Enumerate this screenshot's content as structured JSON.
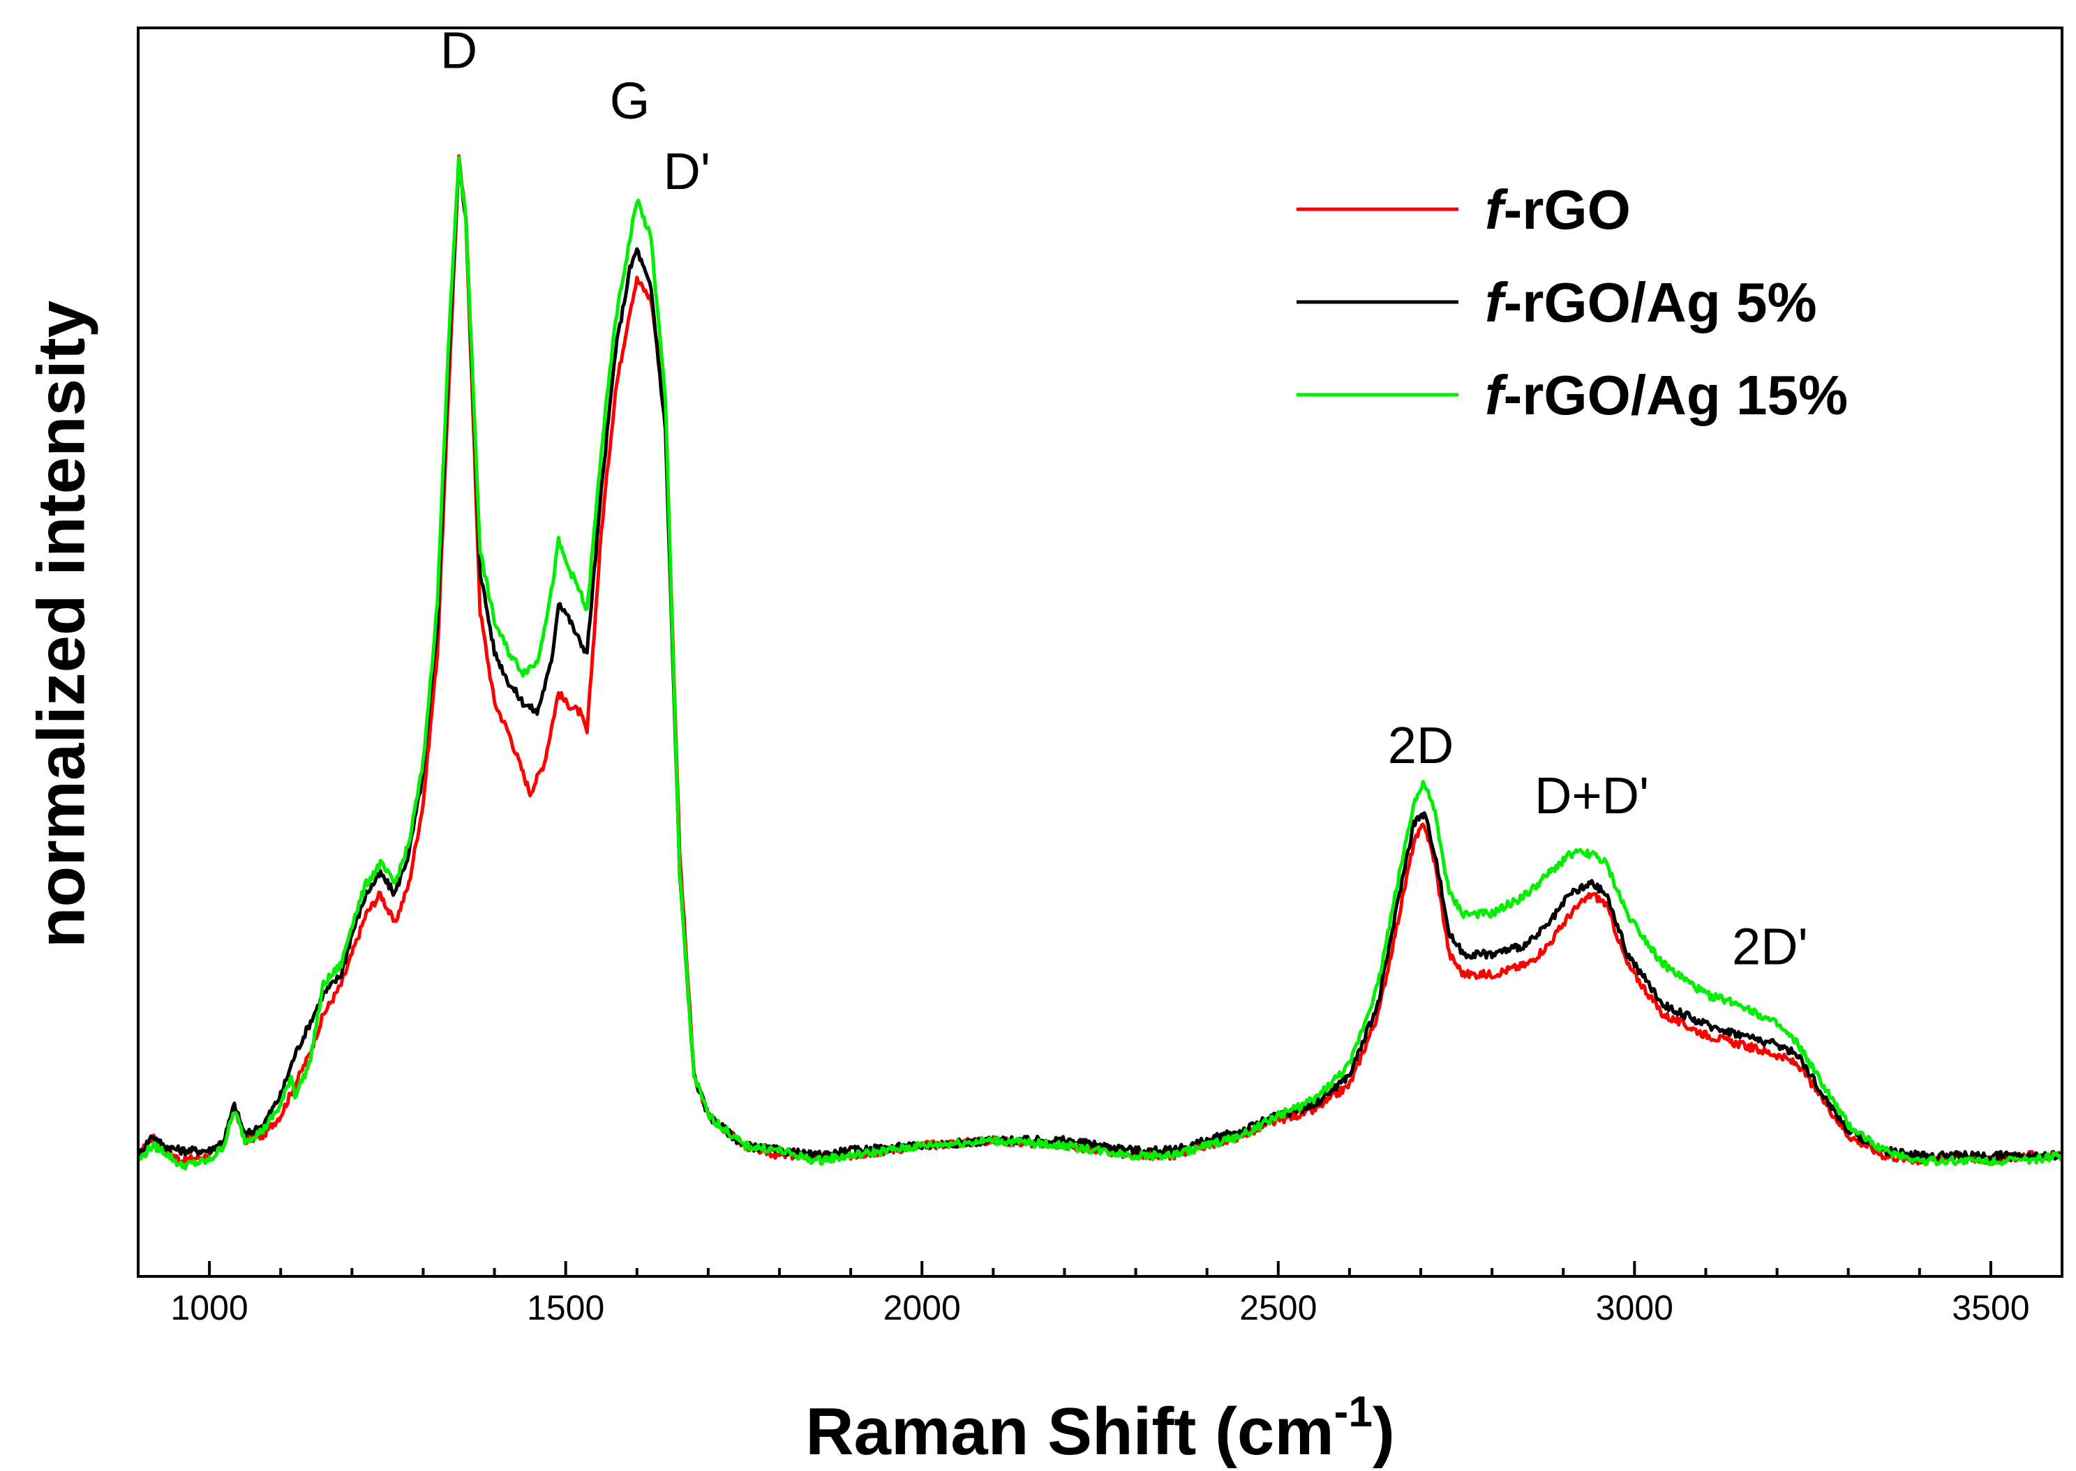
{
  "chart_data": {
    "type": "line",
    "title": "",
    "xlabel": "Raman Shift (cm",
    "xlabel_sup": "-1",
    "xlabel_close": ")",
    "ylabel": "normalized intensity",
    "xlim": [
      900,
      3600
    ],
    "ylim": [
      -0.12,
      1.12
    ],
    "x_ticks": [
      1000,
      1500,
      2000,
      2500,
      3000,
      3500
    ],
    "x_tick_labels": [
      "1000",
      "1500",
      "2000",
      "2500",
      "3000",
      "3500"
    ],
    "y_ticks_shown": false,
    "grid": false,
    "legend_position": "top-right",
    "annotations": [
      {
        "text": "D",
        "x": 1350,
        "y": 1.08
      },
      {
        "text": "G",
        "x": 1590,
        "y": 1.03
      },
      {
        "text": "D'",
        "x": 1670,
        "y": 0.96
      },
      {
        "text": "2D",
        "x": 2700,
        "y": 0.39
      },
      {
        "text": "D+D'",
        "x": 2940,
        "y": 0.34
      },
      {
        "text": "2D'",
        "x": 3190,
        "y": 0.19
      }
    ],
    "series": [
      {
        "name": "f-rGO",
        "name_italic": "f",
        "name_rest": "-rGO",
        "color": "#ff0000",
        "x": [
          900,
          920,
          935,
          960,
          1000,
          1020,
          1035,
          1050,
          1075,
          1100,
          1120,
          1140,
          1160,
          1185,
          1200,
          1220,
          1240,
          1260,
          1280,
          1300,
          1320,
          1335,
          1350,
          1360,
          1380,
          1400,
          1420,
          1440,
          1450,
          1470,
          1490,
          1500,
          1520,
          1530,
          1550,
          1570,
          1590,
          1600,
          1620,
          1640,
          1660,
          1680,
          1700,
          1750,
          1800,
          1850,
          1900,
          2000,
          2100,
          2200,
          2300,
          2350,
          2400,
          2450,
          2500,
          2550,
          2600,
          2640,
          2670,
          2690,
          2705,
          2720,
          2740,
          2760,
          2800,
          2850,
          2880,
          2910,
          2940,
          2960,
          2990,
          3040,
          3100,
          3150,
          3200,
          3230,
          3260,
          3300,
          3350,
          3400,
          3450,
          3500,
          3550,
          3600
        ],
        "y": [
          0.0,
          0.018,
          0.008,
          -0.005,
          0.0,
          0.01,
          0.05,
          0.015,
          0.02,
          0.04,
          0.07,
          0.1,
          0.14,
          0.17,
          0.2,
          0.24,
          0.26,
          0.23,
          0.27,
          0.35,
          0.5,
          0.75,
          0.99,
          0.93,
          0.54,
          0.45,
          0.42,
          0.38,
          0.36,
          0.39,
          0.46,
          0.45,
          0.44,
          0.42,
          0.62,
          0.76,
          0.84,
          0.87,
          0.85,
          0.74,
          0.3,
          0.08,
          0.04,
          0.01,
          0.0,
          0.0,
          0.0,
          0.01,
          0.015,
          0.01,
          0.0,
          0.0,
          0.01,
          0.02,
          0.035,
          0.045,
          0.07,
          0.14,
          0.24,
          0.31,
          0.33,
          0.29,
          0.2,
          0.18,
          0.18,
          0.19,
          0.21,
          0.24,
          0.26,
          0.25,
          0.19,
          0.14,
          0.12,
          0.11,
          0.1,
          0.09,
          0.06,
          0.02,
          0.0,
          -0.005,
          0.0,
          -0.005,
          0.0,
          0.0
        ]
      },
      {
        "name": "f-rGO/Ag 5%",
        "name_italic": "f",
        "name_rest": "-rGO/Ag 5%",
        "color": "#000000",
        "x": [
          900,
          920,
          935,
          960,
          1000,
          1020,
          1035,
          1050,
          1075,
          1100,
          1120,
          1140,
          1160,
          1185,
          1200,
          1220,
          1240,
          1260,
          1280,
          1300,
          1320,
          1335,
          1350,
          1360,
          1380,
          1400,
          1420,
          1440,
          1460,
          1480,
          1490,
          1500,
          1520,
          1530,
          1550,
          1570,
          1590,
          1600,
          1620,
          1640,
          1660,
          1680,
          1700,
          1750,
          1800,
          1850,
          1900,
          2000,
          2100,
          2200,
          2300,
          2350,
          2400,
          2450,
          2500,
          2550,
          2600,
          2640,
          2670,
          2690,
          2705,
          2720,
          2740,
          2760,
          2800,
          2850,
          2880,
          2910,
          2940,
          2960,
          2990,
          3040,
          3100,
          3150,
          3200,
          3230,
          3260,
          3300,
          3350,
          3400,
          3450,
          3500,
          3550,
          3600
        ],
        "y": [
          0.0,
          0.02,
          0.01,
          0.005,
          0.005,
          0.015,
          0.05,
          0.02,
          0.03,
          0.06,
          0.1,
          0.13,
          0.16,
          0.18,
          0.22,
          0.26,
          0.28,
          0.26,
          0.3,
          0.38,
          0.53,
          0.78,
          0.99,
          0.93,
          0.58,
          0.5,
          0.47,
          0.45,
          0.44,
          0.49,
          0.55,
          0.54,
          0.51,
          0.5,
          0.66,
          0.8,
          0.88,
          0.9,
          0.86,
          0.72,
          0.28,
          0.08,
          0.04,
          0.01,
          0.005,
          0.0,
          0.005,
          0.01,
          0.015,
          0.015,
          0.005,
          0.005,
          0.015,
          0.025,
          0.04,
          0.05,
          0.08,
          0.15,
          0.26,
          0.33,
          0.34,
          0.3,
          0.22,
          0.2,
          0.2,
          0.21,
          0.23,
          0.26,
          0.27,
          0.26,
          0.2,
          0.15,
          0.13,
          0.12,
          0.11,
          0.1,
          0.065,
          0.025,
          0.005,
          0.0,
          0.0,
          0.0,
          0.0,
          0.0
        ]
      },
      {
        "name": "f-rGO/Ag 15%",
        "name_italic": "f",
        "name_rest": "-rGO/Ag 15%",
        "color": "#00ee00",
        "x": [
          900,
          920,
          935,
          960,
          1000,
          1020,
          1035,
          1050,
          1075,
          1100,
          1115,
          1120,
          1140,
          1160,
          1185,
          1200,
          1220,
          1240,
          1260,
          1280,
          1300,
          1320,
          1335,
          1350,
          1360,
          1380,
          1400,
          1420,
          1440,
          1460,
          1480,
          1490,
          1500,
          1520,
          1530,
          1550,
          1570,
          1590,
          1600,
          1620,
          1640,
          1660,
          1680,
          1700,
          1750,
          1800,
          1850,
          1900,
          2000,
          2100,
          2200,
          2300,
          2350,
          2400,
          2450,
          2500,
          2550,
          2600,
          2640,
          2670,
          2690,
          2705,
          2720,
          2740,
          2760,
          2800,
          2850,
          2880,
          2910,
          2940,
          2960,
          2990,
          3040,
          3100,
          3150,
          3200,
          3230,
          3260,
          3300,
          3350,
          3400,
          3450,
          3500,
          3550,
          3600
        ],
        "y": [
          -0.005,
          0.01,
          0.005,
          -0.01,
          -0.005,
          0.01,
          0.045,
          0.015,
          0.025,
          0.05,
          0.08,
          0.06,
          0.09,
          0.17,
          0.19,
          0.23,
          0.27,
          0.29,
          0.27,
          0.31,
          0.39,
          0.55,
          0.8,
          0.99,
          0.93,
          0.6,
          0.53,
          0.5,
          0.48,
          0.49,
          0.56,
          0.61,
          0.59,
          0.56,
          0.54,
          0.7,
          0.83,
          0.91,
          0.95,
          0.91,
          0.75,
          0.28,
          0.08,
          0.04,
          0.01,
          0.005,
          -0.005,
          0.0,
          0.01,
          0.015,
          0.01,
          0.0,
          0.0,
          0.01,
          0.02,
          0.04,
          0.055,
          0.09,
          0.17,
          0.28,
          0.35,
          0.37,
          0.34,
          0.26,
          0.24,
          0.24,
          0.26,
          0.28,
          0.3,
          0.3,
          0.29,
          0.24,
          0.19,
          0.16,
          0.15,
          0.13,
          0.11,
          0.075,
          0.03,
          0.005,
          -0.005,
          -0.005,
          -0.005,
          -0.005,
          0.0
        ]
      }
    ]
  }
}
